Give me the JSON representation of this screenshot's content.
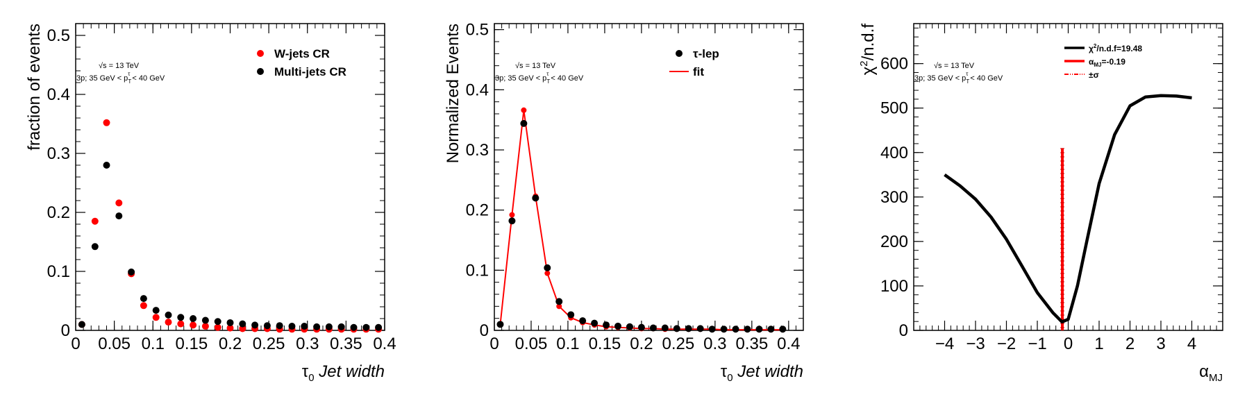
{
  "chart_data": [
    {
      "type": "scatter",
      "ylabel": "fraction of events",
      "xlabel_symbol": "τ",
      "xlabel_sub": "0",
      "xlabel_text": "Jet width",
      "annotation_line1": "√s = 13 TeV",
      "annotation_line2": "3p; 35 GeV < p",
      "annotation_line2_sup": "τ",
      "annotation_line2_sub": "T",
      "annotation_line2_end": " < 40 GeV",
      "xlim": [
        0,
        0.4
      ],
      "ylim": [
        0,
        0.52
      ],
      "xticks": [
        "0",
        "0.05",
        "0.1",
        "0.15",
        "0.2",
        "0.25",
        "0.3",
        "0.35",
        "0.4"
      ],
      "yticks": [
        "0",
        "0.1",
        "0.2",
        "0.3",
        "0.4",
        "0.5"
      ],
      "series": [
        {
          "name": "W-jets CR",
          "color": "#ff0000",
          "x": [
            0.008,
            0.025,
            0.04,
            0.056,
            0.072,
            0.088,
            0.104,
            0.12,
            0.136,
            0.152,
            0.168,
            0.184,
            0.2,
            0.216,
            0.232,
            0.248,
            0.264,
            0.28,
            0.296,
            0.312,
            0.328,
            0.344,
            0.36,
            0.376,
            0.392
          ],
          "values": [
            0.01,
            0.185,
            0.352,
            0.216,
            0.096,
            0.042,
            0.022,
            0.014,
            0.011,
            0.009,
            0.007,
            0.005,
            0.004,
            0.003,
            0.003,
            0.003,
            0.002,
            0.002,
            0.002,
            0.002,
            0.002,
            0.002,
            0.002,
            0.002,
            0.002
          ]
        },
        {
          "name": "Multi-jets CR",
          "color": "#000000",
          "x": [
            0.008,
            0.025,
            0.04,
            0.056,
            0.072,
            0.088,
            0.104,
            0.12,
            0.136,
            0.152,
            0.168,
            0.184,
            0.2,
            0.216,
            0.232,
            0.248,
            0.264,
            0.28,
            0.296,
            0.312,
            0.328,
            0.344,
            0.36,
            0.376,
            0.392
          ],
          "values": [
            0.01,
            0.142,
            0.28,
            0.194,
            0.099,
            0.054,
            0.034,
            0.026,
            0.022,
            0.02,
            0.017,
            0.015,
            0.013,
            0.011,
            0.009,
            0.008,
            0.008,
            0.007,
            0.007,
            0.006,
            0.006,
            0.006,
            0.005,
            0.005,
            0.005
          ]
        }
      ]
    },
    {
      "type": "scatter",
      "ylabel": "Normalized Events",
      "xlabel_symbol": "τ",
      "xlabel_sub": "0",
      "xlabel_text": "Jet width",
      "annotation_line1": "√s = 13 TeV",
      "annotation_line2": "3p; 35 GeV < p",
      "annotation_line2_sup": "τ",
      "annotation_line2_sub": "T",
      "annotation_line2_end": " < 40 GeV",
      "xlim": [
        0,
        0.42
      ],
      "ylim": [
        0,
        0.51
      ],
      "xticks": [
        "0",
        "0.05",
        "0.1",
        "0.15",
        "0.2",
        "0.25",
        "0.3",
        "0.35",
        "0.4"
      ],
      "yticks": [
        "0",
        "0.1",
        "0.2",
        "0.3",
        "0.4",
        "0.5"
      ],
      "series": [
        {
          "name": "τ-lep",
          "color": "#000000",
          "x": [
            0.008,
            0.024,
            0.04,
            0.056,
            0.072,
            0.088,
            0.104,
            0.12,
            0.136,
            0.152,
            0.168,
            0.184,
            0.2,
            0.216,
            0.232,
            0.248,
            0.264,
            0.28,
            0.296,
            0.312,
            0.328,
            0.344,
            0.36,
            0.376,
            0.392
          ],
          "values": [
            0.01,
            0.182,
            0.344,
            0.22,
            0.104,
            0.048,
            0.026,
            0.016,
            0.012,
            0.009,
            0.007,
            0.006,
            0.005,
            0.004,
            0.004,
            0.003,
            0.003,
            0.003,
            0.002,
            0.002,
            0.002,
            0.002,
            0.002,
            0.002,
            0.002
          ]
        },
        {
          "name": "fit",
          "color": "#ff0000",
          "x": [
            0.008,
            0.024,
            0.04,
            0.056,
            0.072,
            0.088,
            0.104,
            0.12,
            0.136,
            0.152,
            0.168,
            0.184,
            0.2,
            0.216,
            0.232,
            0.248,
            0.264,
            0.28,
            0.296,
            0.312,
            0.328,
            0.344,
            0.36,
            0.376,
            0.392
          ],
          "values": [
            0.01,
            0.192,
            0.366,
            0.223,
            0.095,
            0.04,
            0.021,
            0.013,
            0.009,
            0.006,
            0.005,
            0.004,
            0.003,
            0.003,
            0.002,
            0.002,
            0.002,
            0.002,
            0.002,
            0.001,
            0.001,
            0.001,
            0.001,
            0.001,
            0.001
          ]
        }
      ]
    },
    {
      "type": "line",
      "ylabel_base": "χ",
      "ylabel_sup": "2",
      "ylabel_rest": "/n.d.f",
      "xlabel_symbol": "α",
      "xlabel_sub": "MJ",
      "annotation_line1": "√s = 13 TeV",
      "annotation_line2": "3p; 35 GeV < p",
      "annotation_line2_sup": "τ",
      "annotation_line2_sub": "T",
      "annotation_line2_end": " < 40 GeV",
      "xlim": [
        -5,
        5
      ],
      "ylim": [
        0,
        690
      ],
      "xticks": [
        "−4",
        "−3",
        "−2",
        "−1",
        "0",
        "1",
        "2",
        "3",
        "4"
      ],
      "yticks": [
        "0",
        "100",
        "200",
        "300",
        "400",
        "500",
        "600"
      ],
      "best_fit": -0.19,
      "sigma_line_top": 410,
      "legend": [
        {
          "base": "χ",
          "sup": "2",
          "rest": "/n.d.f=19.48",
          "color": "#000000"
        },
        {
          "base": "α",
          "sub": "MJ",
          "rest": "=-0.19",
          "color": "#ff0000"
        },
        {
          "base": "±σ",
          "rest": "",
          "color": "#ff0000"
        }
      ],
      "series": [
        {
          "name": "chi2/ndf",
          "color": "#000000",
          "x": [
            -4,
            -3.5,
            -3,
            -2.5,
            -2,
            -1.5,
            -1,
            -0.5,
            -0.2,
            0,
            0.3,
            0.6,
            1,
            1.5,
            2,
            2.5,
            3,
            3.5,
            4
          ],
          "values": [
            350,
            325,
            295,
            255,
            205,
            145,
            85,
            40,
            19,
            25,
            100,
            200,
            330,
            440,
            505,
            525,
            528,
            527,
            523
          ]
        }
      ]
    }
  ]
}
